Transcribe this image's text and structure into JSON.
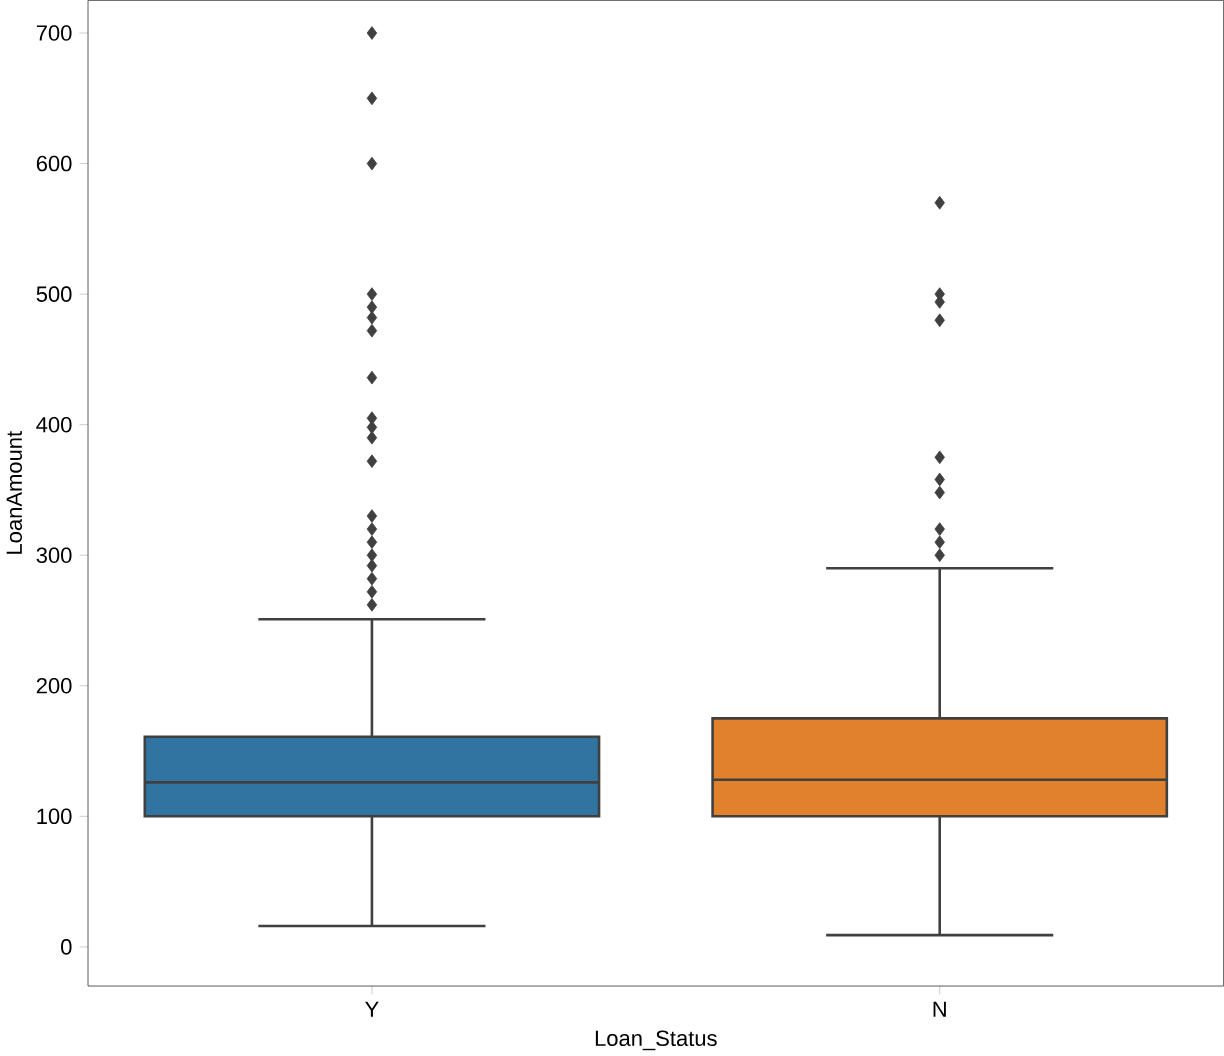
{
  "chart_data": {
    "type": "box",
    "xlabel": "Loan_Status",
    "ylabel": "LoanAmount",
    "categories": [
      "Y",
      "N"
    ],
    "colors": [
      "#3274a1",
      "#e1812c"
    ],
    "boxes": [
      {
        "low": 16,
        "q1": 100,
        "median": 126,
        "q3": 161,
        "high": 251,
        "outliers": [
          700,
          650,
          600,
          500,
          490,
          482,
          472,
          436,
          405,
          398,
          390,
          372,
          330,
          320,
          310,
          300,
          292,
          282,
          272,
          262
        ]
      },
      {
        "low": 9,
        "q1": 100,
        "median": 128,
        "q3": 175,
        "high": 290,
        "outliers": [
          570,
          500,
          494,
          480,
          375,
          358,
          348,
          320,
          310,
          300
        ]
      }
    ],
    "ylim": [
      -30,
      725
    ],
    "yticks": [
      0,
      100,
      200,
      300,
      400,
      500,
      600,
      700
    ],
    "marker": "diamond",
    "grid": false
  }
}
